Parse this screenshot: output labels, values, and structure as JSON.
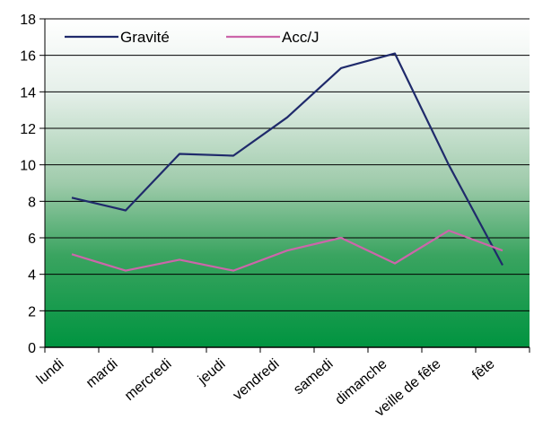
{
  "chart_data": {
    "type": "line",
    "title": "",
    "xlabel": "",
    "ylabel": "",
    "categories": [
      "lundi",
      "mardi",
      "mercredi",
      "jeudi",
      "vendredi",
      "samedi",
      "dimanche",
      "veille de fête",
      "fête"
    ],
    "series": [
      {
        "name": "Gravité",
        "color": "#1f2a6b",
        "values": [
          8.2,
          7.5,
          10.6,
          10.5,
          12.6,
          15.3,
          16.1,
          10.0,
          4.5
        ]
      },
      {
        "name": "Acc/J",
        "color": "#cc66aa",
        "values": [
          5.1,
          4.2,
          4.8,
          4.2,
          5.3,
          6.0,
          4.6,
          6.4,
          5.3
        ]
      }
    ],
    "ylim": [
      0,
      18
    ],
    "yticks": [
      0,
      2,
      4,
      6,
      8,
      10,
      12,
      14,
      16,
      18
    ],
    "grid": true,
    "legend": "top"
  }
}
